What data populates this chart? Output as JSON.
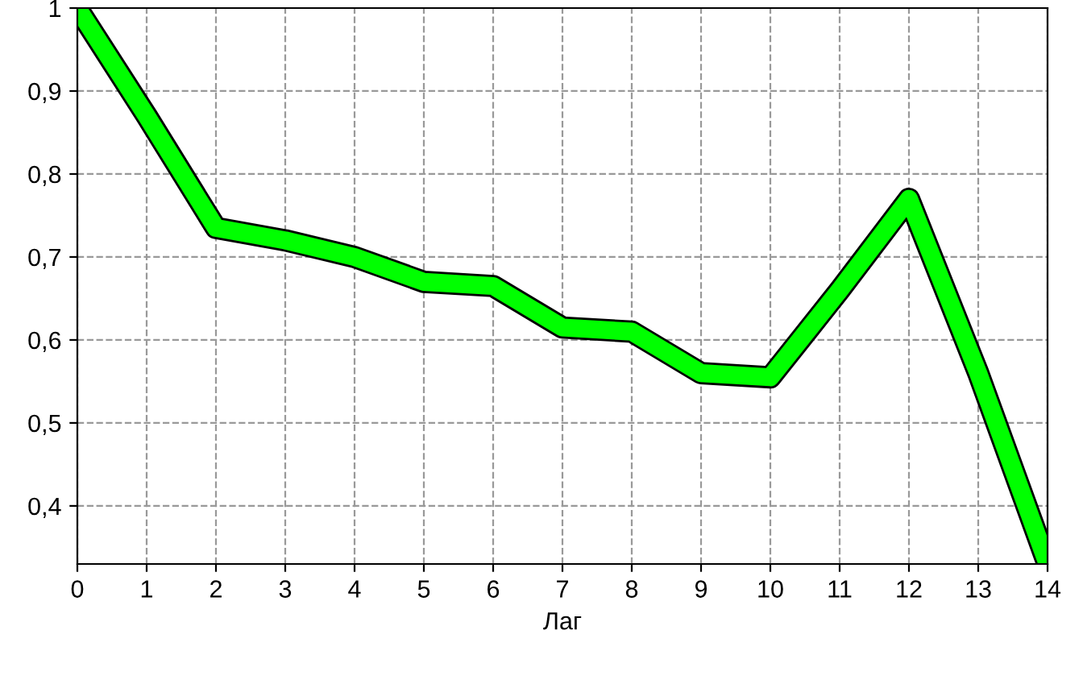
{
  "chart_data": {
    "type": "line",
    "xlabel": "Лаг",
    "x": [
      0,
      1,
      2,
      3,
      4,
      5,
      6,
      7,
      8,
      9,
      10,
      11,
      12,
      13,
      14
    ],
    "series": [
      {
        "color": "#00ff00",
        "values": [
          1.0,
          0.87,
          0.735,
          0.72,
          0.7,
          0.67,
          0.665,
          0.615,
          0.61,
          0.56,
          0.555,
          0.66,
          0.77,
          0.56,
          0.33
        ]
      }
    ],
    "xlim": [
      0,
      14
    ],
    "ylim": [
      0.33,
      1.0
    ],
    "xticks": [
      0,
      1,
      2,
      3,
      4,
      5,
      6,
      7,
      8,
      9,
      10,
      11,
      12,
      13,
      14
    ],
    "yticks": [
      {
        "value": 0.4,
        "label": "0,4"
      },
      {
        "value": 0.5,
        "label": "0,5"
      },
      {
        "value": 0.6,
        "label": "0,6"
      },
      {
        "value": 0.7,
        "label": "0,7"
      },
      {
        "value": 0.8,
        "label": "0,8"
      },
      {
        "value": 0.9,
        "label": "0,9"
      },
      1
    ],
    "grid": true,
    "line_style": "solid",
    "marker": "none",
    "legend": false
  }
}
